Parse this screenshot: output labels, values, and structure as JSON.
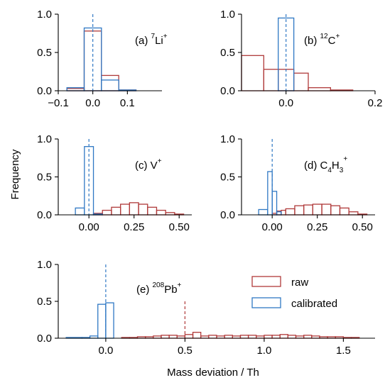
{
  "figure": {
    "ylabel": "Frequency",
    "xlabel": "Mass deviation / Th"
  },
  "colors": {
    "raw": "#b03a3a",
    "calibrated": "#2f78c4"
  },
  "legend": {
    "raw_label": "raw",
    "calibrated_label": "calibrated",
    "placement": "right (panel e)"
  },
  "chart_data": [
    {
      "type": "bar",
      "panel": "a",
      "label_prefix": "(a) ",
      "label_sup": "7",
      "label_main": "Li",
      "label_sup2": "+",
      "label_main2": "",
      "label_sub": "",
      "label_main3": "",
      "label_sup3": "",
      "xlim": [
        -0.1,
        0.2
      ],
      "ylim": [
        0,
        1.0
      ],
      "xticks": [
        -0.1,
        0.0,
        0.1
      ],
      "xtick_labels": [
        "−0.1",
        "0.0",
        "0.1"
      ],
      "yticks": [
        0.0,
        0.5,
        1.0
      ],
      "ytick_labels": [
        "0.0",
        "0.5",
        "1.0"
      ],
      "bin_edges": [
        -0.075,
        -0.025,
        0.025,
        0.075,
        0.125
      ],
      "series": [
        {
          "name": "raw",
          "values": [
            0.03,
            0.78,
            0.2,
            0.01
          ]
        },
        {
          "name": "calibrated",
          "values": [
            0.04,
            0.82,
            0.14,
            0.01
          ]
        }
      ],
      "vlines": [
        {
          "x": 0.0,
          "series": "calibrated"
        }
      ]
    },
    {
      "type": "bar",
      "panel": "b",
      "label_prefix": "(b) ",
      "label_sup": "12",
      "label_main": "C",
      "label_sup2": "+",
      "label_main2": "",
      "label_sub": "",
      "label_main3": "",
      "label_sup3": "",
      "xlim": [
        -0.1,
        0.2
      ],
      "ylim": [
        0,
        1.0
      ],
      "xticks": [
        0.0,
        0.2
      ],
      "xtick_labels": [
        "0.0",
        "0.2"
      ],
      "yticks": [
        0.0,
        0.5,
        1.0
      ],
      "ytick_labels": [
        "0.0",
        "0.5",
        "1.0"
      ],
      "bin_edges": [
        -0.1,
        -0.05,
        -0.0175,
        0.0175,
        0.05,
        0.1,
        0.15
      ],
      "series": [
        {
          "name": "raw",
          "values": [
            0.46,
            0.28,
            0.28,
            0.23,
            0.04,
            0.01
          ]
        },
        {
          "name": "calibrated",
          "values": [
            0,
            0,
            0.95,
            0,
            0,
            0
          ]
        }
      ],
      "vlines": [
        {
          "x": 0.0,
          "series": "calibrated"
        }
      ]
    },
    {
      "type": "bar",
      "panel": "c",
      "label_prefix": "(c) ",
      "label_sup": "",
      "label_main": "V",
      "label_sup2": "+",
      "label_main2": "",
      "label_sub": "",
      "label_main3": "",
      "label_sup3": "",
      "xlim": [
        -0.17,
        0.57
      ],
      "ylim": [
        0,
        1.0
      ],
      "xticks": [
        0.0,
        0.25,
        0.5
      ],
      "xtick_labels": [
        "0.00",
        "0.25",
        "0.50"
      ],
      "yticks": [
        0.0,
        0.5,
        1.0
      ],
      "ytick_labels": [
        "0.0",
        "0.5",
        "1.0"
      ],
      "bin_edges": [
        -0.075,
        -0.025,
        0.025,
        0.075,
        0.125,
        0.175,
        0.225,
        0.275,
        0.325,
        0.375,
        0.425,
        0.475,
        0.525
      ],
      "series": [
        {
          "name": "raw",
          "values": [
            0,
            0,
            0.02,
            0.06,
            0.1,
            0.14,
            0.16,
            0.14,
            0.1,
            0.06,
            0.03,
            0.01
          ]
        },
        {
          "name": "calibrated",
          "values": [
            0.09,
            0.9,
            0.01,
            0,
            0,
            0,
            0,
            0,
            0,
            0,
            0,
            0
          ]
        }
      ],
      "vlines": [
        {
          "x": 0.0,
          "series": "calibrated"
        }
      ]
    },
    {
      "type": "bar",
      "panel": "d",
      "label_prefix": "(d) ",
      "label_sup": "",
      "label_main": "C",
      "label_sup2": "",
      "label_main2": "H",
      "label_sub": "4",
      "label_sub2": "3",
      "label_main3": "",
      "label_sup3": "+",
      "xlim": [
        -0.17,
        0.57
      ],
      "ylim": [
        0,
        1.0
      ],
      "xticks": [
        0.0,
        0.25,
        0.5
      ],
      "xtick_labels": [
        "0.00",
        "0.25",
        "0.50"
      ],
      "yticks": [
        0.0,
        0.5,
        1.0
      ],
      "ytick_labels": [
        "0.0",
        "0.5",
        "1.0"
      ],
      "bin_edges": [
        -0.075,
        -0.025,
        0.0,
        0.025,
        0.05,
        0.075,
        0.125,
        0.175,
        0.225,
        0.275,
        0.325,
        0.375,
        0.425,
        0.475,
        0.525
      ],
      "series": [
        {
          "name": "raw",
          "values": [
            0,
            0,
            0.02,
            0.05,
            0.06,
            0.08,
            0.12,
            0.13,
            0.14,
            0.14,
            0.12,
            0.09,
            0.04,
            0.01
          ]
        },
        {
          "name": "calibrated",
          "values": [
            0.07,
            0.57,
            0.31,
            0.04,
            0,
            0,
            0,
            0,
            0,
            0,
            0,
            0,
            0,
            0
          ]
        }
      ],
      "vlines": [
        {
          "x": 0.0,
          "series": "calibrated"
        }
      ]
    },
    {
      "type": "bar",
      "panel": "e",
      "label_prefix": "(e) ",
      "label_sup": "208",
      "label_main": "Pb",
      "label_sup2": "+",
      "label_main2": "",
      "label_sub": "",
      "label_main3": "",
      "label_sup3": "",
      "xlim": [
        -0.3,
        1.7
      ],
      "ylim": [
        0,
        1.0
      ],
      "xticks": [
        0.0,
        0.5,
        1.0,
        1.5
      ],
      "xtick_labels": [
        "0.0",
        "0.5",
        "1.0",
        "1.5"
      ],
      "yticks": [
        0.0,
        0.5,
        1.0
      ],
      "ytick_labels": [
        "0.0",
        "0.5",
        "1.0"
      ],
      "bin_edges_raw": [
        0.1,
        0.15,
        0.2,
        0.25,
        0.3,
        0.35,
        0.4,
        0.45,
        0.5,
        0.55,
        0.6,
        0.65,
        0.7,
        0.75,
        0.8,
        0.85,
        0.9,
        0.95,
        1.0,
        1.05,
        1.1,
        1.15,
        1.2,
        1.25,
        1.3,
        1.35,
        1.4,
        1.45,
        1.5,
        1.55,
        1.6
      ],
      "series": [
        {
          "name": "raw",
          "values": [
            0.01,
            0.01,
            0.02,
            0.02,
            0.03,
            0.04,
            0.04,
            0.03,
            0.05,
            0.08,
            0.03,
            0.04,
            0.03,
            0.04,
            0.03,
            0.04,
            0.04,
            0.03,
            0.04,
            0.04,
            0.05,
            0.04,
            0.03,
            0.04,
            0.03,
            0.02,
            0.02,
            0.02,
            0.01,
            0.01
          ]
        },
        {
          "name": "calibrated",
          "values": [
            0.01,
            0.01,
            0.03,
            0.46,
            0.48
          ]
        }
      ],
      "bin_edges_cal": [
        -0.25,
        -0.15,
        -0.1,
        -0.05,
        0.0,
        0.05
      ],
      "vlines": [
        {
          "x": 0.0,
          "series": "calibrated"
        },
        {
          "x": 0.5,
          "series": "raw"
        }
      ]
    }
  ]
}
